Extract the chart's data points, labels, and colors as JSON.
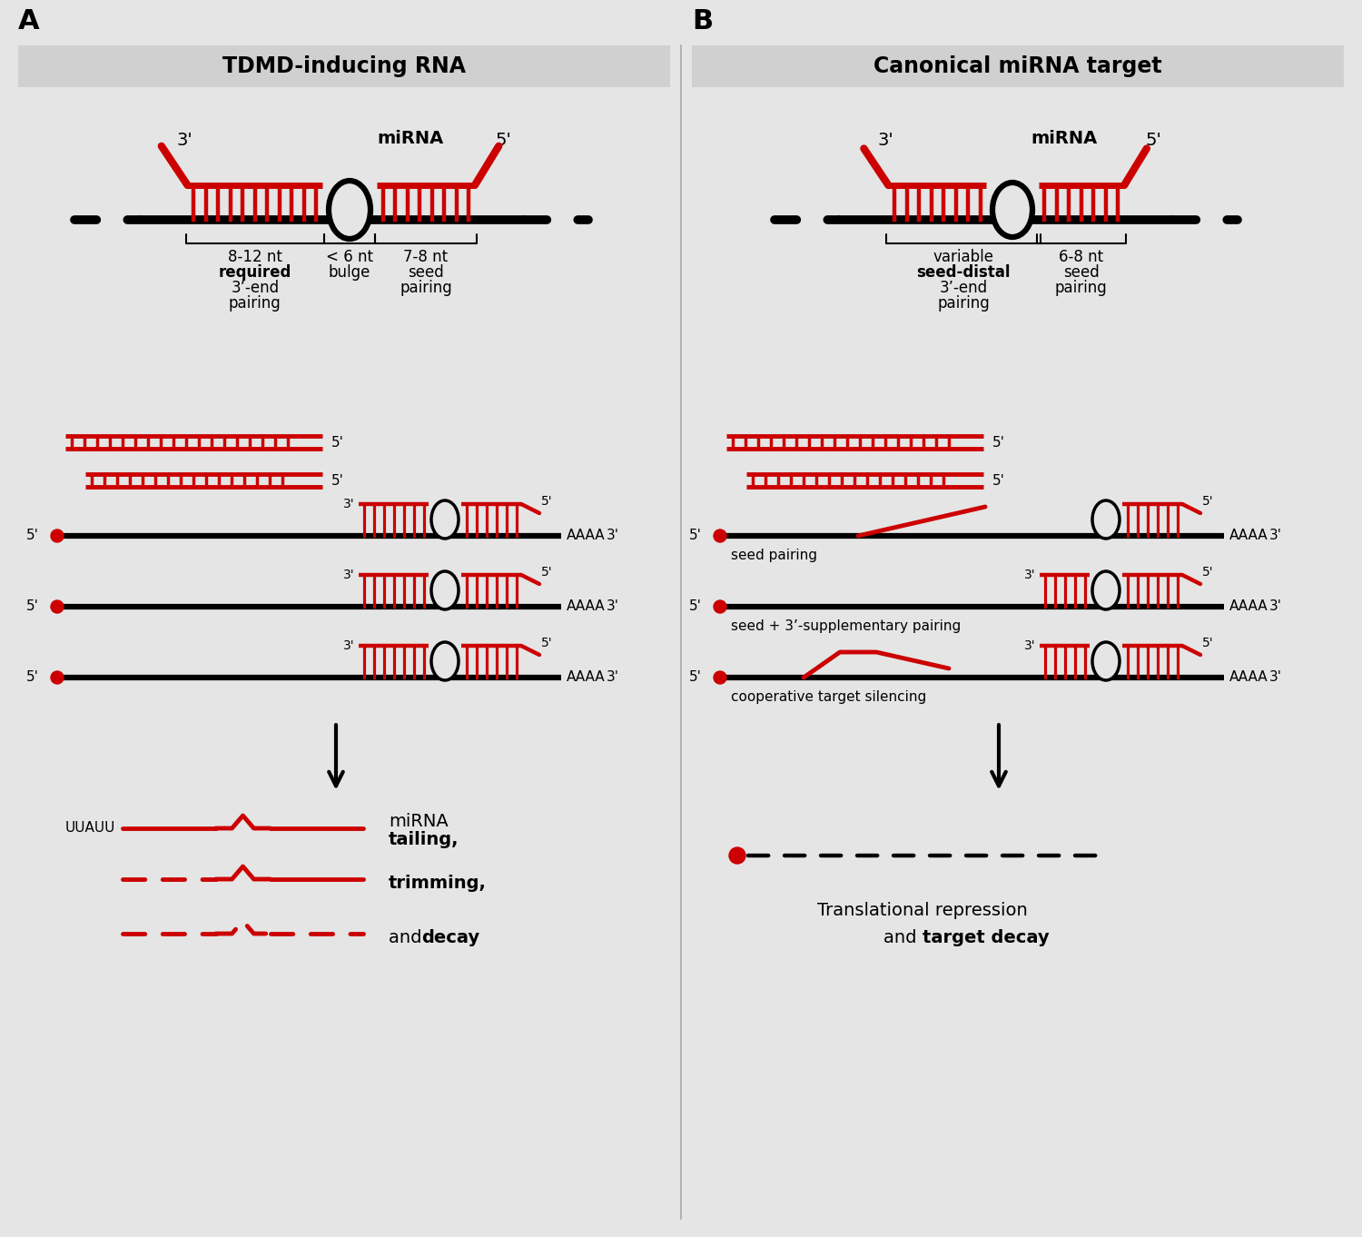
{
  "bg_color": "#e5e5e5",
  "title_bar_color": "#d0d0d0",
  "black": "#000000",
  "red": "#cc0000",
  "panel_A_title": "TDMD-inducing RNA",
  "panel_B_title": "Canonical miRNA target",
  "panel_A_label": "A",
  "panel_B_label": "B",
  "uuauu": "UUAUU",
  "bottom_B_text1": "Translational repression",
  "bottom_B_text2": "and",
  "bottom_B_text3": "target decay",
  "fig_w": 15.0,
  "fig_h": 13.62,
  "dpi": 100
}
